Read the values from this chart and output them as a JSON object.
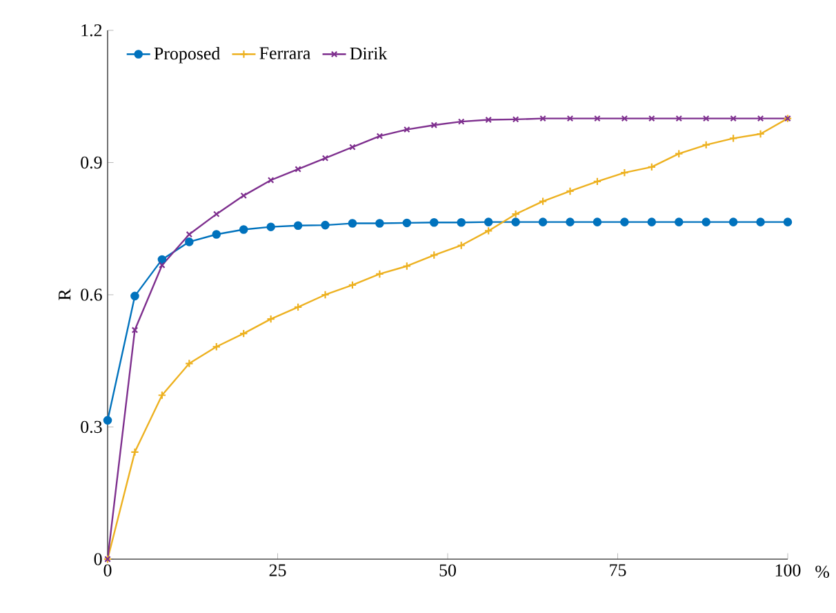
{
  "chart_data": {
    "type": "line",
    "xlabel": "%",
    "ylabel": "R",
    "x": [
      0,
      4,
      8,
      12,
      16,
      20,
      24,
      28,
      32,
      36,
      40,
      44,
      48,
      52,
      56,
      60,
      64,
      68,
      72,
      76,
      80,
      84,
      88,
      92,
      96,
      100
    ],
    "series": [
      {
        "name": "Proposed",
        "color": "#0072bd",
        "marker": "circle",
        "values": [
          0.315,
          0.597,
          0.68,
          0.72,
          0.737,
          0.748,
          0.754,
          0.757,
          0.758,
          0.762,
          0.762,
          0.763,
          0.764,
          0.764,
          0.765,
          0.765,
          0.765,
          0.765,
          0.765,
          0.765,
          0.765,
          0.765,
          0.765,
          0.765,
          0.765,
          0.765
        ]
      },
      {
        "name": "Ferrara",
        "color": "#edb120",
        "marker": "plus",
        "values": [
          0,
          0.243,
          0.372,
          0.444,
          0.482,
          0.512,
          0.545,
          0.572,
          0.6,
          0.622,
          0.647,
          0.665,
          0.69,
          0.712,
          0.745,
          0.783,
          0.812,
          0.835,
          0.857,
          0.877,
          0.89,
          0.92,
          0.94,
          0.955,
          0.965,
          1.0
        ]
      },
      {
        "name": "Dirik",
        "color": "#7e2f8e",
        "marker": "cross",
        "values": [
          0,
          0.52,
          0.667,
          0.737,
          0.783,
          0.825,
          0.86,
          0.885,
          0.91,
          0.935,
          0.96,
          0.975,
          0.985,
          0.993,
          0.997,
          0.998,
          1,
          1,
          1,
          1,
          1,
          1,
          1,
          1,
          1,
          1
        ]
      }
    ],
    "xlim": [
      0,
      100
    ],
    "ylim": [
      0,
      1.2
    ],
    "xticks": [
      0,
      25,
      50,
      75,
      100
    ],
    "yticks": [
      0,
      0.3,
      0.6,
      0.9,
      1.2
    ],
    "grid": false,
    "legend": "top left",
    "line_style": "solid"
  }
}
